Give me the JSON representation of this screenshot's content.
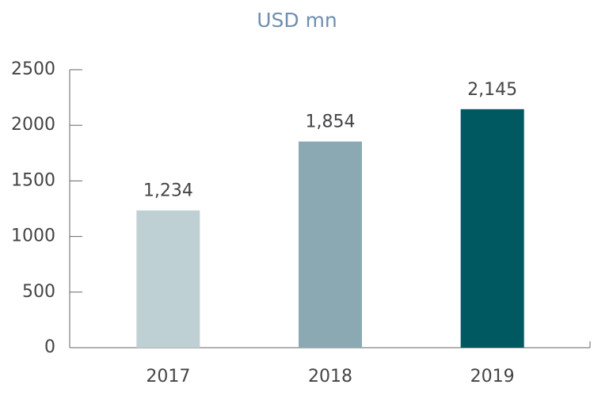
{
  "chart_data": {
    "type": "bar",
    "title": "USD mn",
    "categories": [
      "2017",
      "2018",
      "2019"
    ],
    "values": [
      1234,
      1854,
      2145
    ],
    "value_labels": [
      "1,234",
      "1,854",
      "2,145"
    ],
    "colors": [
      "#bfd0d4",
      "#8aa9b2",
      "#005860"
    ],
    "ylim": [
      0,
      2500
    ],
    "yticks": [
      0,
      500,
      1000,
      1500,
      2000,
      2500
    ],
    "grid": false
  }
}
